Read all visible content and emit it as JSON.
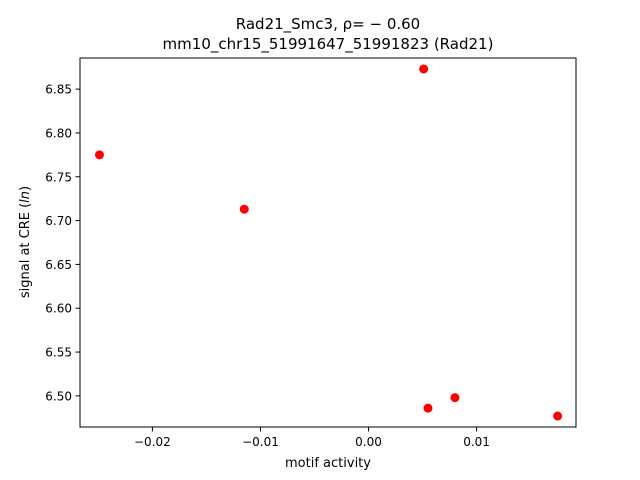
{
  "chart_data": {
    "type": "scatter",
    "title_line1": "Rad21_Smc3, ρ= − 0.60",
    "title_line2": "mm10_chr15_51991647_51991823 (Rad21)",
    "xlabel": "motif activity",
    "ylabel": "signal at CRE (ln)",
    "xlim": [
      -0.0267,
      0.0192
    ],
    "ylim": [
      6.4645,
      6.8855
    ],
    "xticks": [
      -0.02,
      -0.01,
      0.0,
      0.01
    ],
    "xtick_labels": [
      "−0.02",
      "−0.01",
      "0.00",
      "0.01"
    ],
    "yticks": [
      6.5,
      6.55,
      6.6,
      6.65,
      6.7,
      6.75,
      6.8,
      6.85
    ],
    "ytick_labels": [
      "6.50",
      "6.55",
      "6.60",
      "6.65",
      "6.70",
      "6.75",
      "6.80",
      "6.85"
    ],
    "grid": false,
    "marker_color": "#ff0000",
    "points": [
      {
        "x": -0.0249,
        "y": 6.775
      },
      {
        "x": -0.0115,
        "y": 6.713
      },
      {
        "x": 0.0051,
        "y": 6.873
      },
      {
        "x": 0.0055,
        "y": 6.486
      },
      {
        "x": 0.008,
        "y": 6.498
      },
      {
        "x": 0.0175,
        "y": 6.477
      }
    ]
  }
}
